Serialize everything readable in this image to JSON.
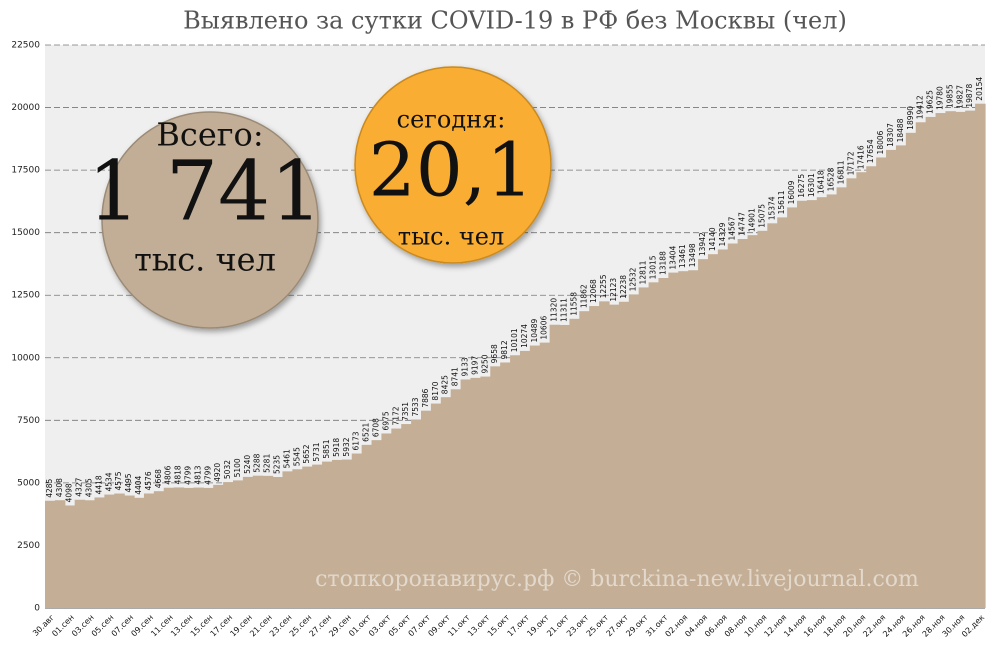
{
  "chart_data": {
    "type": "step-area",
    "title": "Выявлено за сутки COVID-19 в РФ без Москвы (чел)",
    "watermark": "стопкоронавирус.рф © burckina-new.livejournal.com",
    "total_bubble": {
      "label": "Всего:",
      "value": "1 741",
      "unit": "тыс. чел"
    },
    "today_bubble": {
      "label": "сегодня:",
      "value": "20,1",
      "unit": "тыс. чел"
    },
    "color": "#c4ae96",
    "grid": true,
    "ylim": [
      0,
      22500
    ],
    "yticks": [
      0,
      2500,
      5000,
      7500,
      10000,
      12500,
      15000,
      17500,
      20000,
      22500
    ],
    "categories": [
      "30.авг",
      null,
      "01.сен",
      null,
      "03.сен",
      null,
      "05.сен",
      null,
      "07.сен",
      null,
      "09.сен",
      null,
      "11.сен",
      null,
      "13.сен",
      null,
      "15.сен",
      null,
      "17.сен",
      null,
      "19.сен",
      null,
      "21.сен",
      null,
      "23.сен",
      null,
      "25.сен",
      null,
      "27.сен",
      null,
      "29.сен",
      null,
      "01.окт",
      null,
      "03.окт",
      null,
      "05.окт",
      null,
      "07.окт",
      null,
      "09.окт",
      null,
      "11.окт",
      null,
      "13.окт",
      null,
      "15.окт",
      null,
      "17.окт",
      null,
      "19.окт",
      null,
      "21.окт",
      null,
      "23.окт",
      null,
      "25.окт",
      null,
      "27.окт",
      null,
      "29.окт",
      null,
      "31.окт",
      null,
      "02.ноя",
      null,
      "04.ноя",
      null,
      "06.ноя",
      null,
      "08.ноя",
      null,
      "10.ноя",
      null,
      "12.ноя",
      null,
      "14.ноя",
      null,
      "16.ноя",
      null,
      "18.ноя",
      null,
      "20.ноя",
      null,
      "22.ноя",
      null,
      "24.ноя",
      null,
      "26.ноя",
      null,
      "28.ноя",
      null,
      "30.ноя",
      null,
      "02.дек"
    ],
    "values": [
      4285,
      4308,
      4098,
      4327,
      4305,
      4418,
      4534,
      4575,
      4495,
      4404,
      4576,
      4668,
      4806,
      4818,
      4799,
      4813,
      4799,
      4920,
      5032,
      5100,
      5240,
      5288,
      5281,
      5235,
      5461,
      5545,
      5652,
      5731,
      5851,
      5918,
      5932,
      6173,
      6521,
      6708,
      6975,
      7172,
      7351,
      7533,
      7886,
      8170,
      8425,
      8741,
      9133,
      9197,
      9250,
      9658,
      9812,
      10101,
      10274,
      10489,
      10606,
      11320,
      11311,
      11558,
      11862,
      12068,
      12255,
      12123,
      12238,
      12532,
      12811,
      13015,
      13188,
      13404,
      13461,
      13498,
      13942,
      14140,
      14329,
      14567,
      14747,
      14901,
      15075,
      15374,
      15611,
      16009,
      16275,
      16301,
      16418,
      16528,
      16811,
      17172,
      17416,
      17654,
      18006,
      18307,
      18488,
      18990,
      19412,
      19625,
      19780,
      19855,
      19827,
      19878,
      20154
    ]
  }
}
